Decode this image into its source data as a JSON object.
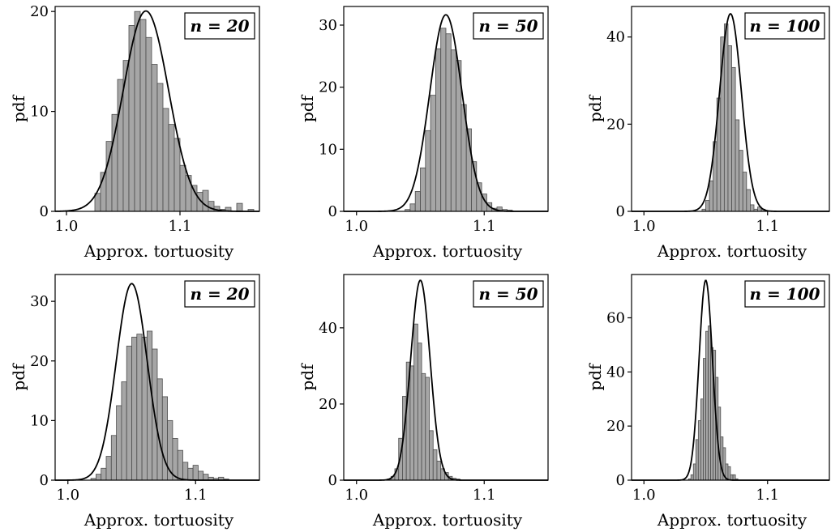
{
  "chart_data": [
    {
      "type": "bar",
      "legend": "n = 20",
      "xlabel": "Approx. tortuosity",
      "ylabel": "pdf",
      "xlim": [
        0.99,
        1.17
      ],
      "ylim": [
        0,
        20.5
      ],
      "xticks": [
        1.0,
        1.1
      ],
      "xtick_labels": [
        "1.0",
        "1.1"
      ],
      "yticks": [
        0,
        10,
        20
      ],
      "ytick_labels": [
        "0",
        "10",
        "20"
      ],
      "bin_width": 0.005,
      "bins_start": 1.025,
      "values": [
        1.8,
        3.9,
        7.0,
        9.7,
        13.2,
        15.1,
        18.6,
        20.0,
        19.2,
        17.4,
        14.7,
        12.8,
        10.3,
        8.7,
        7.3,
        4.6,
        3.6,
        2.6,
        1.9,
        2.1,
        1.0,
        0.5,
        0.2,
        0.4,
        0.0,
        0.8,
        0.0,
        0.2
      ],
      "fit": {
        "mean": 1.07,
        "sd": 0.0199
      },
      "legend_position": "top-right"
    },
    {
      "type": "bar",
      "legend": "n = 50",
      "xlabel": "Approx. tortuosity",
      "ylabel": "pdf",
      "xlim": [
        0.99,
        1.15
      ],
      "ylim": [
        0,
        33
      ],
      "xticks": [
        1.0,
        1.1
      ],
      "xtick_labels": [
        "1.0",
        "1.1"
      ],
      "yticks": [
        0,
        10,
        20,
        30
      ],
      "ytick_labels": [
        "0",
        "10",
        "20",
        "30"
      ],
      "bin_width": 0.004,
      "bins_start": 1.038,
      "values": [
        0.3,
        1.2,
        3.2,
        7.0,
        13.0,
        18.7,
        26.2,
        29.5,
        28.6,
        26.0,
        24.3,
        17.2,
        13.3,
        8.0,
        4.6,
        2.8,
        1.4,
        0.5,
        0.7,
        0.3,
        0.2
      ],
      "fit": {
        "mean": 1.07,
        "sd": 0.0126
      },
      "legend_position": "top-right"
    },
    {
      "type": "bar",
      "legend": "n = 100",
      "xlabel": "Approx. tortuosity",
      "ylabel": "pdf",
      "xlim": [
        0.99,
        1.15
      ],
      "ylim": [
        0,
        47
      ],
      "xticks": [
        1.0,
        1.1
      ],
      "xtick_labels": [
        "1.0",
        "1.1"
      ],
      "yticks": [
        0,
        20,
        40
      ],
      "ytick_labels": [
        "0",
        "20",
        "40"
      ],
      "bin_width": 0.003,
      "bins_start": 1.047,
      "values": [
        0.5,
        2.5,
        7.0,
        16.0,
        26.0,
        40.0,
        43.0,
        38.0,
        33.0,
        21.0,
        14.0,
        9.0,
        5.0,
        1.5,
        0.5,
        1.0,
        0.5
      ],
      "fit": {
        "mean": 1.07,
        "sd": 0.0088
      },
      "legend_position": "top-right"
    },
    {
      "type": "bar",
      "legend": "n = 20",
      "xlabel": "Approx. tortuosity",
      "ylabel": "pdf",
      "xlim": [
        0.99,
        1.15
      ],
      "ylim": [
        0,
        34.5
      ],
      "xticks": [
        1.0,
        1.1
      ],
      "xtick_labels": [
        "1.0",
        "1.1"
      ],
      "yticks": [
        0,
        10,
        20,
        30
      ],
      "ytick_labels": [
        "0",
        "10",
        "20",
        "30"
      ],
      "bin_width": 0.004,
      "bins_start": 1.018,
      "values": [
        0.3,
        1.0,
        2.0,
        4.0,
        7.5,
        12.5,
        16.5,
        22.5,
        24.0,
        24.5,
        24.0,
        25.0,
        22.0,
        17.0,
        14.0,
        10.0,
        7.0,
        5.0,
        3.0,
        2.0,
        2.5,
        1.5,
        1.0,
        0.5,
        0.3,
        0.5,
        0.2
      ],
      "fit": {
        "mean": 1.05,
        "sd": 0.0121
      },
      "legend_position": "top-right"
    },
    {
      "type": "bar",
      "legend": "n = 50",
      "xlabel": "Approx. tortuosity",
      "ylabel": "pdf",
      "xlim": [
        0.99,
        1.15
      ],
      "ylim": [
        0,
        54
      ],
      "xticks": [
        1.0,
        1.1
      ],
      "xtick_labels": [
        "1.0",
        "1.1"
      ],
      "yticks": [
        0,
        20,
        40
      ],
      "ytick_labels": [
        "0",
        "20",
        "40"
      ],
      "bin_width": 0.003,
      "bins_start": 1.024,
      "values": [
        0.3,
        1.0,
        3.0,
        11.0,
        22.0,
        31.0,
        30.0,
        41.0,
        36.0,
        28.0,
        27.0,
        13.0,
        8.0,
        5.0,
        3.0,
        2.0,
        1.0,
        0.5,
        0.3
      ],
      "fit": {
        "mean": 1.05,
        "sd": 0.0076
      },
      "legend_position": "top-right"
    },
    {
      "type": "bar",
      "legend": "n = 100",
      "xlabel": "Approx. tortuosity",
      "ylabel": "pdf",
      "xlim": [
        0.99,
        1.15
      ],
      "ylim": [
        0,
        76
      ],
      "xticks": [
        1.0,
        1.1
      ],
      "xtick_labels": [
        "1.0",
        "1.1"
      ],
      "yticks": [
        0,
        20,
        40,
        60
      ],
      "ytick_labels": [
        "0",
        "20",
        "40",
        "60"
      ],
      "bin_width": 0.002,
      "bins_start": 1.036,
      "values": [
        0.5,
        2.0,
        6.0,
        15.0,
        22.0,
        30.0,
        45.0,
        55.0,
        57.0,
        49.0,
        48.0,
        38.0,
        27.0,
        16.0,
        12.0,
        6.0,
        5.0,
        2.0,
        2.0,
        0.5
      ],
      "fit": {
        "mean": 1.05,
        "sd": 0.0054
      },
      "legend_position": "top-right"
    }
  ]
}
